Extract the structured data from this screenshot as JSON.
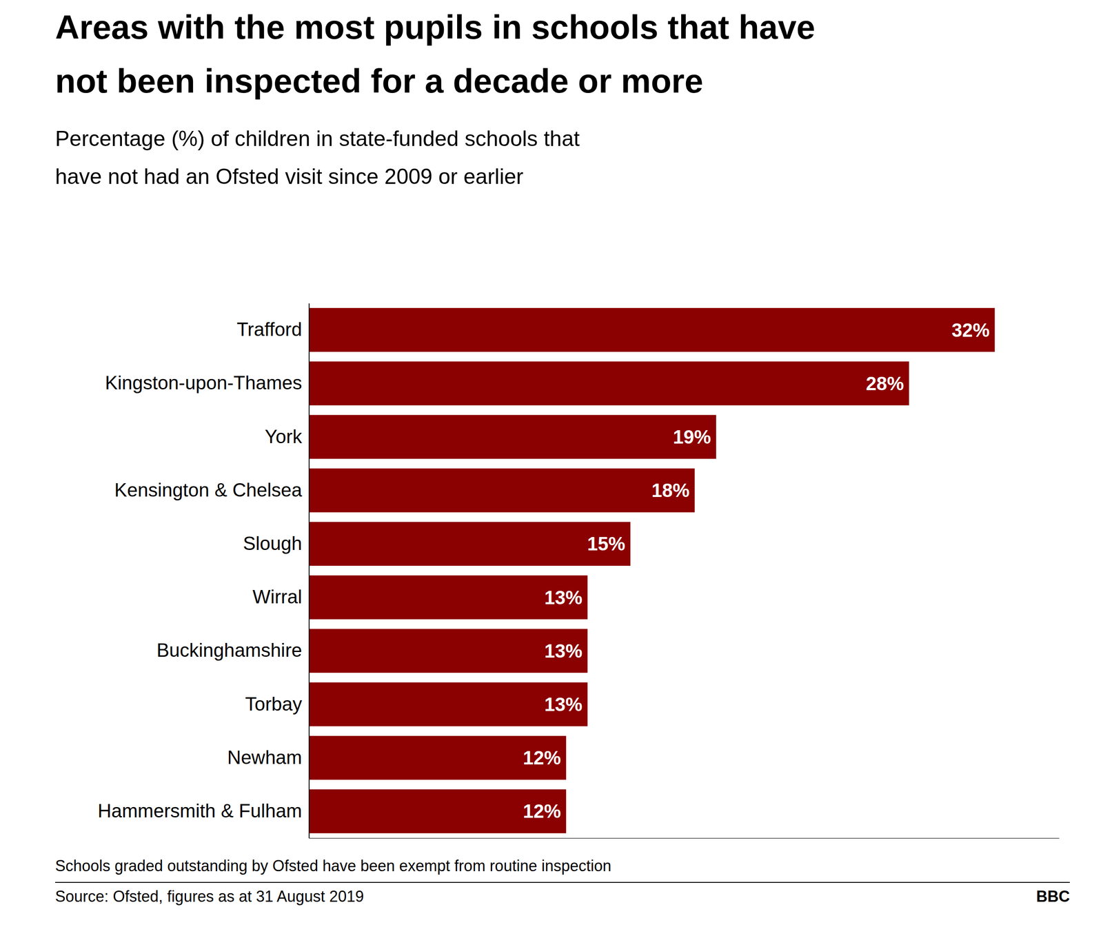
{
  "chart_data": {
    "type": "bar",
    "orientation": "horizontal",
    "title": [
      "Areas with the most pupils in schools that have",
      "not been inspected for a decade or more"
    ],
    "subtitle": [
      "Percentage (%) of children in state-funded schools that",
      "have not had an Ofsted visit since 2009 or earlier"
    ],
    "categories": [
      "Hammersmith & Fulham",
      "Newham",
      "Torbay",
      "Buckinghamshire",
      "Wirral",
      "Slough",
      "Kensington & Chelsea",
      "York",
      "Kingston-upon-Thames",
      "Trafford"
    ],
    "values": [
      12,
      12,
      13,
      13,
      13,
      15,
      18,
      19,
      28,
      32
    ],
    "value_labels": [
      "12%",
      "12%",
      "13%",
      "13%",
      "13%",
      "15%",
      "18%",
      "19%",
      "28%",
      "32%"
    ],
    "data_labels": true,
    "color": "#8B0000",
    "xlim": [
      0,
      35
    ],
    "tick_labels": "y",
    "grid": false,
    "annotations": [
      "Schools graded outstanding by Ofsted have been exempt from routine inspection",
      "Source: Ofsted, figures as at 31 August 2019",
      "BBC"
    ]
  }
}
